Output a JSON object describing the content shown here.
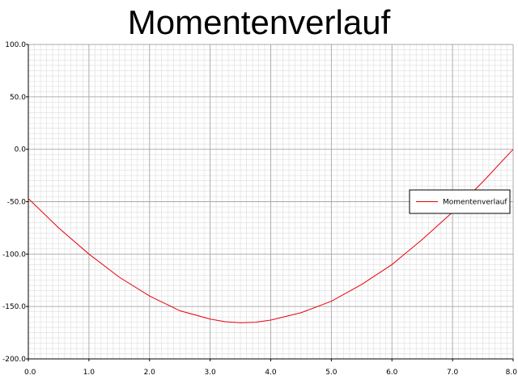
{
  "chart_data": {
    "type": "line",
    "title": "Momentenverlauf",
    "xlabel": "",
    "ylabel": "",
    "xlim": [
      0,
      8
    ],
    "ylim": [
      -200,
      100
    ],
    "x_ticks": [
      0,
      1,
      2,
      3,
      4,
      5,
      6,
      7,
      8
    ],
    "x_tick_labels": [
      "0.0",
      "1.0",
      "2.0",
      "3.0",
      "4.0",
      "5.0",
      "6.0",
      "7.0",
      "8.0"
    ],
    "y_ticks": [
      100,
      50,
      0,
      -50,
      -100,
      -150,
      -200
    ],
    "y_tick_labels": [
      "100.0",
      "50.0",
      "0.0",
      "-50.0",
      "-100.0",
      "-150.0",
      "-200.0"
    ],
    "grid": true,
    "legend_position": "right",
    "series": [
      {
        "name": "Momentenverlauf",
        "color": "#e8000b",
        "x": [
          0.0,
          0.5,
          1.0,
          1.5,
          2.0,
          2.5,
          3.0,
          3.25,
          3.5,
          3.75,
          4.0,
          4.5,
          5.0,
          5.5,
          6.0,
          6.5,
          7.0,
          7.5,
          8.0
        ],
        "y": [
          -47,
          -75,
          -100,
          -122,
          -140,
          -154,
          -162,
          -164.5,
          -165.5,
          -165,
          -163,
          -156,
          -145,
          -129,
          -110,
          -86,
          -60,
          -31,
          0
        ]
      }
    ]
  }
}
